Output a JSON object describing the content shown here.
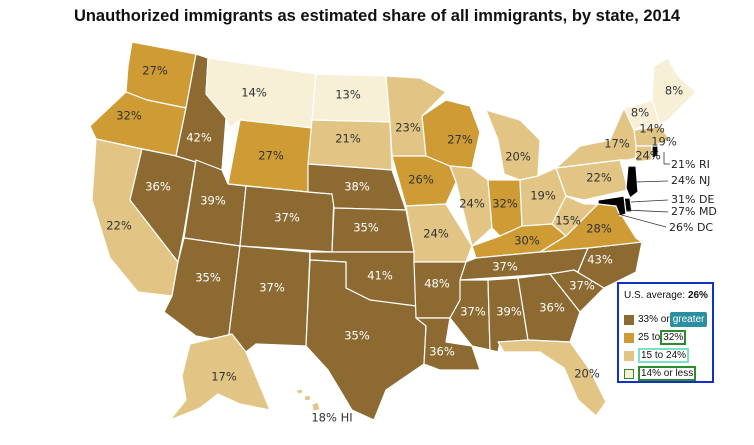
{
  "title": "Unauthorized immigrants as estimated share of all immigrants, by state, 2014",
  "colors": {
    "c1": "#8c6a31",
    "c2": "#cf9b34",
    "c3": "#e2c584",
    "c4": "#f7efd6"
  },
  "states": [
    {
      "id": "WA",
      "value": "27%",
      "cls": "c2"
    },
    {
      "id": "OR",
      "value": "32%",
      "cls": "c2"
    },
    {
      "id": "CA",
      "value": "22%",
      "cls": "c3"
    },
    {
      "id": "NV",
      "value": "36%",
      "cls": "c1"
    },
    {
      "id": "ID",
      "value": "42%",
      "cls": "c1"
    },
    {
      "id": "MT",
      "value": "14%",
      "cls": "c4"
    },
    {
      "id": "WY",
      "value": "27%",
      "cls": "c2"
    },
    {
      "id": "UT",
      "value": "39%",
      "cls": "c1"
    },
    {
      "id": "AZ",
      "value": "35%",
      "cls": "c1"
    },
    {
      "id": "CO",
      "value": "37%",
      "cls": "c1"
    },
    {
      "id": "NM",
      "value": "37%",
      "cls": "c1"
    },
    {
      "id": "ND",
      "value": "13%",
      "cls": "c4"
    },
    {
      "id": "SD",
      "value": "21%",
      "cls": "c3"
    },
    {
      "id": "NE",
      "value": "38%",
      "cls": "c1"
    },
    {
      "id": "KS",
      "value": "35%",
      "cls": "c1"
    },
    {
      "id": "OK",
      "value": "41%",
      "cls": "c1"
    },
    {
      "id": "TX",
      "value": "35%",
      "cls": "c1"
    },
    {
      "id": "MN",
      "value": "23%",
      "cls": "c3"
    },
    {
      "id": "IA",
      "value": "26%",
      "cls": "c2"
    },
    {
      "id": "MO",
      "value": "24%",
      "cls": "c3"
    },
    {
      "id": "AR",
      "value": "48%",
      "cls": "c1"
    },
    {
      "id": "LA",
      "value": "36%",
      "cls": "c1"
    },
    {
      "id": "WI",
      "value": "27%",
      "cls": "c2"
    },
    {
      "id": "IL",
      "value": "24%",
      "cls": "c3"
    },
    {
      "id": "MI",
      "value": "20%",
      "cls": "c3"
    },
    {
      "id": "IN",
      "value": "32%",
      "cls": "c2"
    },
    {
      "id": "OH",
      "value": "19%",
      "cls": "c3"
    },
    {
      "id": "KY",
      "value": "30%",
      "cls": "c2"
    },
    {
      "id": "TN",
      "value": "37%",
      "cls": "c1"
    },
    {
      "id": "MS",
      "value": "37%",
      "cls": "c1"
    },
    {
      "id": "AL",
      "value": "39%",
      "cls": "c1"
    },
    {
      "id": "GA",
      "value": "36%",
      "cls": "c1"
    },
    {
      "id": "FL",
      "value": "20%",
      "cls": "c3"
    },
    {
      "id": "SC",
      "value": "37%",
      "cls": "c1"
    },
    {
      "id": "NC",
      "value": "43%",
      "cls": "c1"
    },
    {
      "id": "VA",
      "value": "28%",
      "cls": "c2"
    },
    {
      "id": "WV",
      "value": "15%",
      "cls": "c3"
    },
    {
      "id": "PA",
      "value": "22%",
      "cls": "c3"
    },
    {
      "id": "NY",
      "value": "17%",
      "cls": "c3"
    },
    {
      "id": "VT",
      "value": "8%",
      "cls": "c4"
    },
    {
      "id": "NH",
      "value": "14%",
      "cls": "c4"
    },
    {
      "id": "ME",
      "value": "8%",
      "cls": "c4"
    },
    {
      "id": "MA",
      "value": "19%",
      "cls": "c3"
    },
    {
      "id": "CT",
      "value": "24%",
      "cls": "c3"
    },
    {
      "id": "AK",
      "value": "17%",
      "cls": "c3"
    },
    {
      "id": "HI",
      "value": "18% HI",
      "cls": "c3"
    }
  ],
  "callouts": [
    {
      "id": "RI",
      "text": "21% RI"
    },
    {
      "id": "NJ",
      "text": "24% NJ"
    },
    {
      "id": "DE",
      "text": "31% DE"
    },
    {
      "id": "MD",
      "text": "27% MD"
    },
    {
      "id": "DC",
      "text": "26% DC"
    }
  ],
  "legend": {
    "avg_label": "U.S. average:",
    "avg_value": "26%",
    "items": [
      {
        "pre": "33% or ",
        "hl": "greater",
        "cls": "c1"
      },
      {
        "pre": "25 to ",
        "hl": "32%",
        "cls": "c2"
      },
      {
        "pre": "",
        "hl": "15 to 24%",
        "cls": "c3"
      },
      {
        "pre": "",
        "hl": "14% or less",
        "cls": "c4"
      }
    ]
  }
}
